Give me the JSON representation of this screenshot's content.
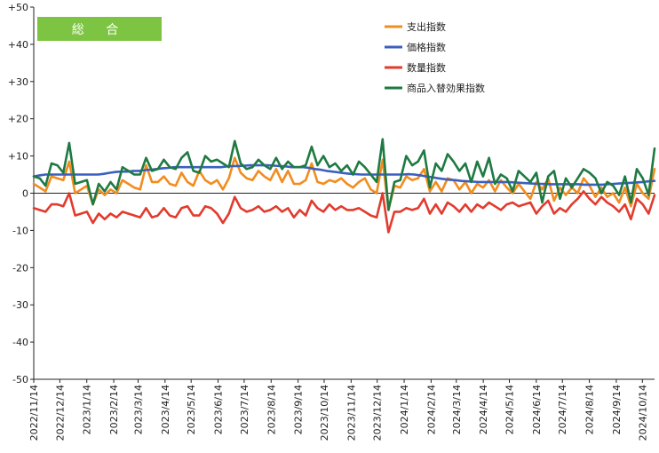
{
  "chart_data": {
    "type": "line",
    "badge_label": "総 合",
    "badge_color": "#7dc442",
    "ylim": [
      -50,
      50
    ],
    "y_ticks": [
      "+50",
      "+40",
      "+30",
      "+20",
      "+10",
      "0",
      "-10",
      "-20",
      "-30",
      "-40",
      "-50"
    ],
    "x_start": "2022/11/14",
    "x_end": "2024/10/28",
    "x_tick_labels": [
      "2022/11/14",
      "2022/12/14",
      "2023/1/14",
      "2023/2/14",
      "2023/3/14",
      "2023/4/14",
      "2023/5/14",
      "2023/6/14",
      "2023/7/14",
      "2023/8/14",
      "2023/9/14",
      "2023/10/14",
      "2023/11/14",
      "2023/12/14",
      "2024/1/14",
      "2024/2/14",
      "2024/3/14",
      "2024/4/14",
      "2024/5/14",
      "2024/6/14",
      "2024/7/14",
      "2024/8/14",
      "2024/9/14",
      "2024/10/14"
    ],
    "series": [
      {
        "name": "支出指数",
        "color": "#f28c1e",
        "values": [
          2.5,
          1.5,
          0.5,
          4.5,
          4,
          3.5,
          8.5,
          0,
          1,
          2,
          -3,
          1,
          -0.5,
          1,
          0,
          3.5,
          2.5,
          1.5,
          1,
          7.5,
          3,
          3,
          4.5,
          2.5,
          2,
          5.5,
          3,
          2,
          6,
          3.5,
          2.5,
          3.5,
          1,
          4,
          9.5,
          5.5,
          4,
          3.5,
          6,
          4.5,
          3.5,
          6.5,
          3,
          6,
          2.5,
          2.5,
          3.5,
          8,
          3,
          2.5,
          3.5,
          3,
          4,
          2.5,
          1.5,
          3,
          4,
          1,
          0,
          9,
          -4.5,
          2,
          1.5,
          4.5,
          3.5,
          4,
          6.5,
          0.5,
          3,
          0.5,
          4,
          3.5,
          1,
          3,
          0,
          2.5,
          1.5,
          3.5,
          0.5,
          3.5,
          1.5,
          0,
          2.5,
          0.5,
          -1.5,
          3,
          1,
          4,
          -2,
          1.5,
          -0.5,
          1.5,
          0,
          4,
          2,
          -1,
          1.5,
          -1,
          0,
          -2.5,
          1.5,
          -3.5,
          2.5,
          0,
          -1.5,
          6.5
        ]
      },
      {
        "name": "価格指数",
        "color": "#3a5fbf",
        "values": [
          4.5,
          4.8,
          5,
          5,
          5,
          5,
          5,
          5,
          5,
          5,
          5,
          5,
          5.2,
          5.5,
          5.7,
          5.8,
          5.8,
          6,
          6,
          6.2,
          6.3,
          6.5,
          6.7,
          6.8,
          7,
          7,
          7,
          7,
          7,
          7,
          7,
          7,
          7,
          7.2,
          7.3,
          7.3,
          7.4,
          7.5,
          7.5,
          7.5,
          7.5,
          7.4,
          7.3,
          7.2,
          7,
          7,
          7,
          6.8,
          6.5,
          6.3,
          6,
          5.8,
          5.6,
          5.4,
          5.2,
          5.1,
          5,
          5,
          5,
          5,
          5,
          5,
          5,
          5,
          5.1,
          5,
          4.8,
          4.5,
          4.3,
          4,
          3.8,
          3.6,
          3.5,
          3.3,
          3.2,
          3.1,
          3,
          3,
          3,
          3,
          3,
          3,
          2.9,
          2.8,
          2.7,
          2.6,
          2.5,
          2.5,
          2.4,
          2.4,
          2.4,
          2.4,
          2.4,
          2.4,
          2.3,
          2.3,
          2.3,
          2.3,
          2.4,
          2.5,
          2.6,
          2.7,
          2.8,
          2.9,
          3,
          3.2,
          3.3
        ]
      },
      {
        "name": "数量指数",
        "color": "#e23b2e",
        "values": [
          -4,
          -4.5,
          -5,
          -3,
          -3,
          -3.5,
          0,
          -6,
          -5.5,
          -5,
          -8,
          -5.5,
          -7,
          -5.5,
          -6.5,
          -5,
          -5.5,
          -6,
          -6.5,
          -4,
          -6.5,
          -6,
          -4,
          -6,
          -6.5,
          -4,
          -3.5,
          -6,
          -6,
          -3.5,
          -4,
          -5.5,
          -8,
          -5.5,
          -1,
          -4,
          -5,
          -4.5,
          -3.5,
          -5,
          -4.5,
          -3.5,
          -5,
          -4,
          -6.5,
          -4.5,
          -6,
          -2,
          -4,
          -5,
          -3,
          -4.5,
          -3.5,
          -4.5,
          -4.5,
          -4,
          -5,
          -6,
          -6.5,
          0,
          -10.5,
          -5,
          -5,
          -4,
          -4.5,
          -4,
          -1.5,
          -5.5,
          -3,
          -5.5,
          -2.5,
          -3.5,
          -5,
          -3,
          -5,
          -3,
          -4,
          -2.5,
          -3.5,
          -4.5,
          -3,
          -2.5,
          -3.5,
          -3,
          -2.5,
          -5.5,
          -3.5,
          -2,
          -5.5,
          -4,
          -5,
          -3,
          -1.5,
          0.5,
          -1.5,
          -3,
          -1,
          -2.5,
          -3.5,
          -5,
          -3,
          -7,
          -1.5,
          -3,
          -5.5,
          -0.5
        ]
      },
      {
        "name": "商品入替効果指数",
        "color": "#1e7a42",
        "values": [
          4.5,
          4,
          2,
          8,
          7.5,
          5.5,
          13.5,
          2.5,
          3,
          3.5,
          -3,
          2.5,
          0.5,
          3,
          1,
          7,
          6,
          5,
          5,
          9.5,
          6,
          6.5,
          9,
          7,
          6.5,
          9.5,
          11,
          6,
          5.5,
          10,
          8.5,
          9,
          8,
          7,
          14,
          8,
          6.5,
          7,
          9,
          7.5,
          6.5,
          9.5,
          6.5,
          8.5,
          7,
          7,
          7.5,
          12.5,
          7.5,
          10,
          7,
          8,
          6,
          7.5,
          5,
          8.5,
          7,
          5,
          3,
          14.5,
          -4.5,
          3,
          3.5,
          10,
          7.5,
          8.5,
          11.5,
          1.5,
          8,
          6,
          10.5,
          8.5,
          6,
          8,
          3,
          8.5,
          4.5,
          9.5,
          2.5,
          5,
          4,
          0.5,
          6,
          4.5,
          3,
          5.5,
          -2.5,
          4.5,
          6,
          -1.5,
          4,
          1.5,
          4,
          6.5,
          5.5,
          4,
          0,
          3,
          2,
          -0.5,
          4.5,
          -2.5,
          6.5,
          4,
          -0.5,
          12
        ]
      }
    ],
    "grid": false,
    "legend_position": "top-right"
  }
}
